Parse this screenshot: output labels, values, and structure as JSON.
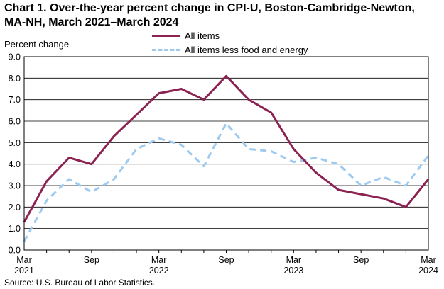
{
  "chart_data": {
    "type": "line",
    "title_line1": "Chart 1. Over-the-year percent change in CPI-U, Boston-Cambridge-Newton,",
    "title_line2": "MA-NH, March 2021–March 2024",
    "ylabel": "Percent change",
    "source": "Source: U.S. Bureau of Labor Statistics.",
    "ylim": [
      0,
      9
    ],
    "yticks": [
      "0.0",
      "1.0",
      "2.0",
      "3.0",
      "4.0",
      "5.0",
      "6.0",
      "7.0",
      "8.0",
      "9.0"
    ],
    "x": [
      "Mar 2021",
      "May 2021",
      "Jul 2021",
      "Sep 2021",
      "Nov 2021",
      "Jan 2022",
      "Mar 2022",
      "May 2022",
      "Jul 2022",
      "Sep 2022",
      "Nov 2022",
      "Jan 2023",
      "Mar 2023",
      "May 2023",
      "Jul 2023",
      "Sep 2023",
      "Nov 2023",
      "Jan 2024",
      "Mar 2024"
    ],
    "xtick_labels": [
      {
        "index": 0,
        "month": "Mar",
        "year": "2021"
      },
      {
        "index": 3,
        "month": "Sep",
        "year": ""
      },
      {
        "index": 6,
        "month": "Mar",
        "year": "2022"
      },
      {
        "index": 9,
        "month": "Sep",
        "year": ""
      },
      {
        "index": 12,
        "month": "Mar",
        "year": "2023"
      },
      {
        "index": 15,
        "month": "Sep",
        "year": ""
      },
      {
        "index": 18,
        "month": "Mar",
        "year": "2024"
      }
    ],
    "series": [
      {
        "name": "All items",
        "color": "#8b2252",
        "style": "solid",
        "values": [
          1.3,
          3.2,
          4.3,
          4.0,
          5.3,
          6.3,
          7.3,
          7.5,
          7.0,
          8.1,
          7.0,
          6.4,
          4.7,
          3.6,
          2.8,
          2.6,
          2.4,
          2.0,
          3.3
        ]
      },
      {
        "name": "All items less food and energy",
        "color": "#9ecaf0",
        "style": "dashed",
        "values": [
          0.4,
          2.3,
          3.3,
          2.7,
          3.3,
          4.7,
          5.2,
          4.9,
          3.9,
          5.9,
          4.7,
          4.6,
          4.1,
          4.3,
          4.0,
          3.0,
          3.4,
          3.0,
          4.4
        ]
      }
    ],
    "legend_position": "top-center",
    "grid": true
  }
}
